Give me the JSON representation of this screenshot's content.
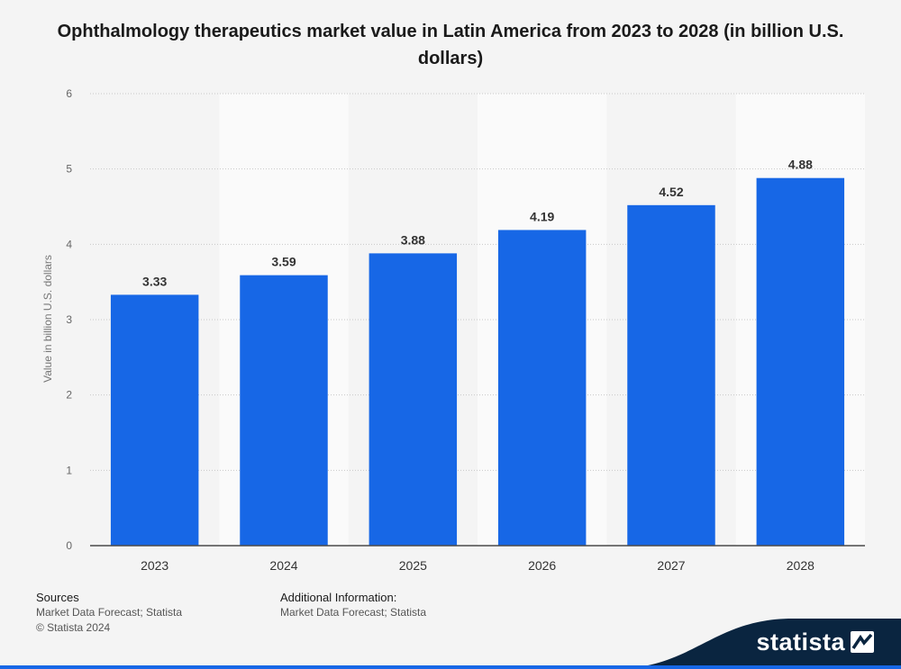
{
  "chart_data": {
    "type": "bar",
    "title": "Ophthalmology therapeutics market value in Latin America from 2023 to 2028 (in billion U.S. dollars)",
    "ylabel": "Value in billion U.S. dollars",
    "xlabel": "",
    "categories": [
      "2023",
      "2024",
      "2025",
      "2026",
      "2027",
      "2028"
    ],
    "values": [
      3.33,
      3.59,
      3.88,
      4.19,
      4.52,
      4.88
    ],
    "value_labels": [
      "3.33",
      "3.59",
      "3.88",
      "4.19",
      "4.52",
      "4.88"
    ],
    "ylim": [
      0,
      6
    ],
    "yticks": [
      "0",
      "1",
      "2",
      "3",
      "4",
      "5",
      "6"
    ],
    "grid": true,
    "legend": "none",
    "bar_color": "#1767e6"
  },
  "footer": {
    "sources_heading": "Sources",
    "sources_line1": "Market Data Forecast; Statista",
    "sources_line2": "© Statista 2024",
    "additional_heading": "Additional Information:",
    "additional_line1": "Market Data Forecast; Statista"
  },
  "brand": {
    "logo_text": "statista",
    "logo_icon": "statista-logo-icon",
    "color": "#0a2540"
  }
}
